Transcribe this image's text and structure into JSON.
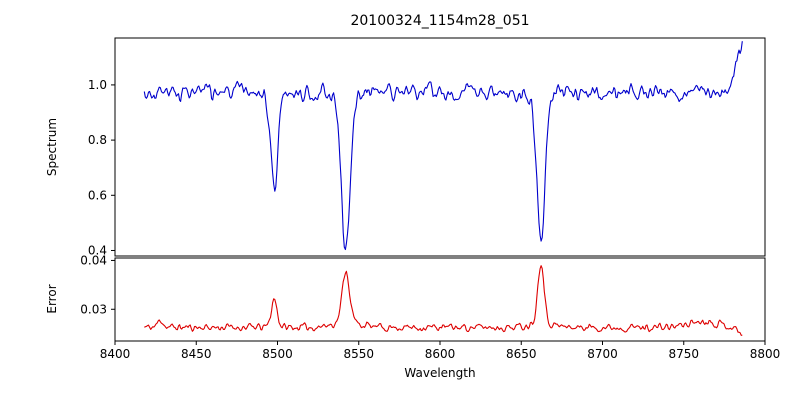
{
  "figure": {
    "background": "#ffffff"
  },
  "chart_data": {
    "type": "line",
    "title": "20100324_1154m28_051",
    "xlabel": "Wavelength",
    "xlim": [
      8400,
      8800
    ],
    "x_ticks": [
      {
        "value": 8400,
        "label": "8400"
      },
      {
        "value": 8450,
        "label": "8450"
      },
      {
        "value": 8500,
        "label": "8500"
      },
      {
        "value": 8550,
        "label": "8550"
      },
      {
        "value": 8600,
        "label": "8600"
      },
      {
        "value": 8650,
        "label": "8650"
      },
      {
        "value": 8700,
        "label": "8700"
      },
      {
        "value": 8750,
        "label": "8750"
      },
      {
        "value": 8800,
        "label": "8800"
      }
    ],
    "panels": [
      {
        "name": "spectrum",
        "ylabel": "Spectrum",
        "color": "#0000cc",
        "ylim": [
          0.38,
          1.17
        ],
        "y_ticks": [
          {
            "value": 0.4,
            "label": "0.4"
          },
          {
            "value": 0.6,
            "label": "0.6"
          },
          {
            "value": 0.8,
            "label": "0.8"
          },
          {
            "value": 1.0,
            "label": "1.0"
          }
        ],
        "x_range": [
          8418,
          8786
        ],
        "n_points": 560,
        "seed": 3,
        "baseline": 0.972,
        "noise": 0.042,
        "features": [
          {
            "center": 8498.0,
            "amplitude": -0.345,
            "sigma": 2.2
          },
          {
            "center": 8542.1,
            "amplitude": -0.565,
            "sigma": 2.8
          },
          {
            "center": 8662.1,
            "amplitude": -0.515,
            "sigma": 2.5
          },
          {
            "center": 8788.0,
            "amplitude": 0.185,
            "sigma": 5.0
          }
        ]
      },
      {
        "name": "error",
        "ylabel": "Error",
        "color": "#dd0000",
        "ylim": [
          0.0235,
          0.0405
        ],
        "y_ticks": [
          {
            "value": 0.03,
            "label": "0.03"
          },
          {
            "value": 0.04,
            "label": "0.04"
          }
        ],
        "x_range": [
          8418,
          8786
        ],
        "n_points": 560,
        "seed": 11,
        "baseline": 0.0263,
        "noise": 0.0011,
        "features": [
          {
            "center": 8428.0,
            "amplitude": 0.0016,
            "sigma": 1.6
          },
          {
            "center": 8498.0,
            "amplitude": 0.0058,
            "sigma": 1.8
          },
          {
            "center": 8542.1,
            "amplitude": 0.0105,
            "sigma": 2.2
          },
          {
            "center": 8542.1,
            "amplitude": 0.0012,
            "sigma": 8.0
          },
          {
            "center": 8662.1,
            "amplitude": 0.0125,
            "sigma": 1.9
          },
          {
            "center": 8662.1,
            "amplitude": 0.001,
            "sigma": 7.0
          },
          {
            "center": 8762.0,
            "amplitude": 0.0013,
            "sigma": 9.0
          },
          {
            "center": 8786.0,
            "amplitude": -0.0012,
            "sigma": 3.0
          }
        ]
      }
    ]
  }
}
